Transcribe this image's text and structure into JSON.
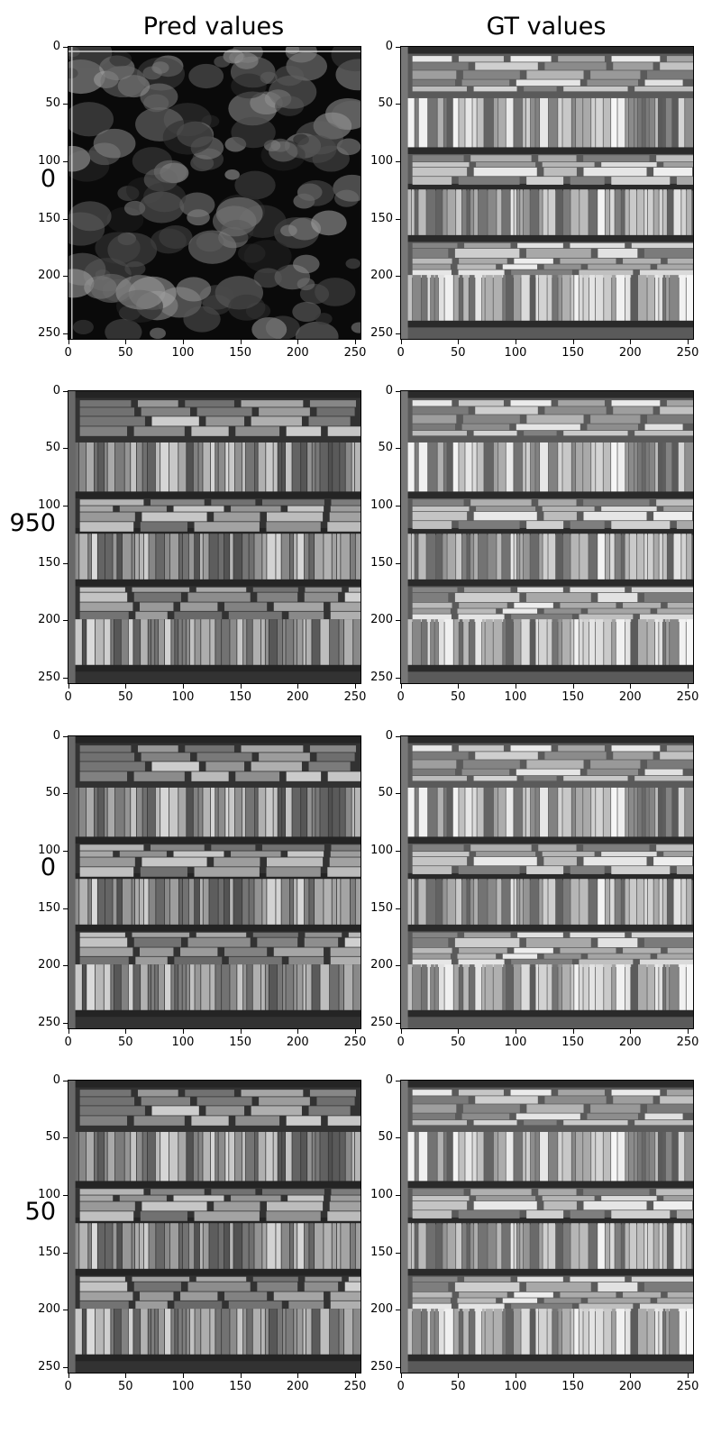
{
  "columns": {
    "left_title": "Pred values",
    "right_title": "GT values"
  },
  "rows": [
    {
      "label": "0"
    },
    {
      "label": "950"
    },
    {
      "label": "0"
    },
    {
      "label": "50"
    }
  ],
  "axes": {
    "yticks": [
      "0",
      "50",
      "100",
      "150",
      "200",
      "250"
    ],
    "xticks": [
      "0",
      "50",
      "100",
      "150",
      "200",
      "250"
    ]
  }
}
